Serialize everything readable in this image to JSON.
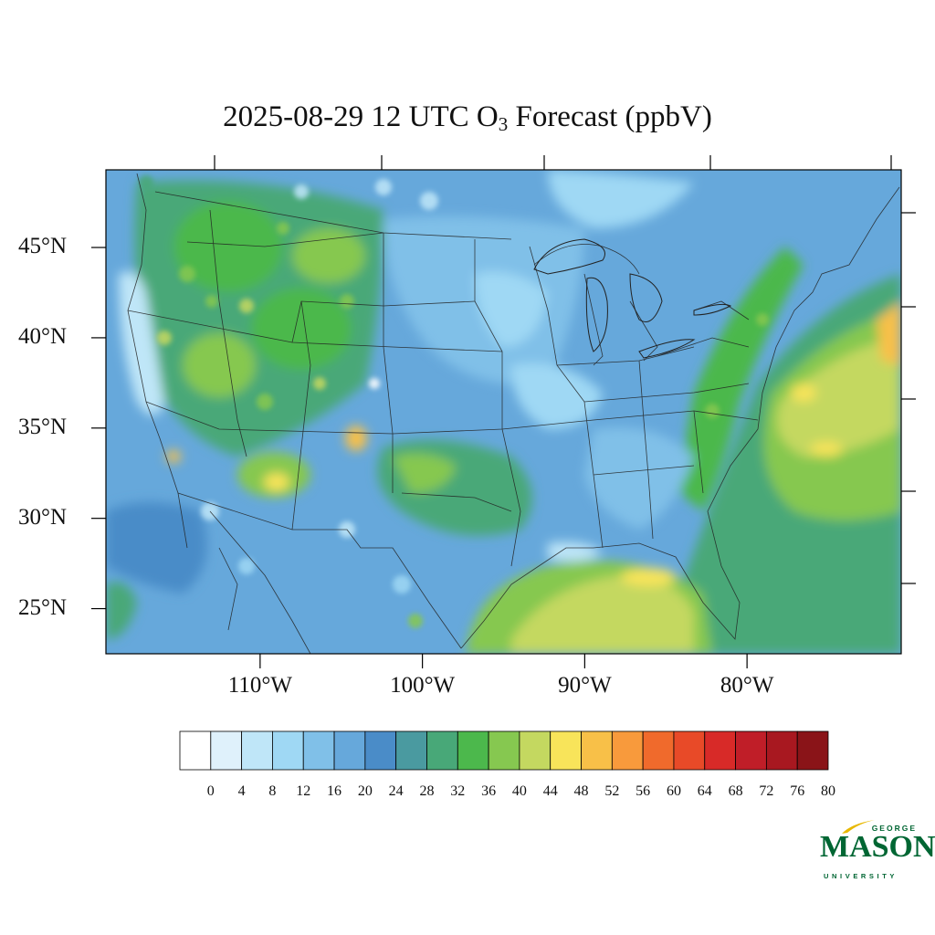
{
  "title": {
    "prefix": "2025-08-29 12 UTC O",
    "subscript": "3",
    "suffix": " Forecast (ppbV)"
  },
  "map": {
    "lat_labels": [
      "45°N",
      "40°N",
      "35°N",
      "30°N",
      "25°N"
    ],
    "lon_labels": [
      "110°W",
      "100°W",
      "90°W",
      "80°W"
    ],
    "lat_values": [
      45,
      40,
      35,
      30,
      25
    ],
    "lon_values": [
      -110,
      -100,
      -90,
      -80
    ],
    "extent": {
      "lon_min": -119.5,
      "lon_max": -70.5,
      "lat_min": 22.5,
      "lat_max": 49.3
    }
  },
  "colorbar": {
    "labels": [
      "0",
      "4",
      "8",
      "12",
      "16",
      "20",
      "24",
      "28",
      "32",
      "36",
      "40",
      "44",
      "48",
      "52",
      "56",
      "60",
      "64",
      "68",
      "72",
      "76",
      "80"
    ],
    "colors": [
      "#ffffff",
      "#dff1fb",
      "#bfe6f8",
      "#9fd8f4",
      "#80c0e8",
      "#66a8db",
      "#4a8cc8",
      "#4a9aa0",
      "#48a878",
      "#4cb84c",
      "#86c850",
      "#c4d860",
      "#f8e45a",
      "#f8c048",
      "#f89a3c",
      "#f06a2c",
      "#e84a28",
      "#d82a28",
      "#c01e28",
      "#a81820",
      "#8a1418"
    ]
  },
  "logo": {
    "top_text": "GEORGE",
    "main_text": "MASON",
    "bottom_text": "UNIVERSITY",
    "color": "#006633",
    "accent": "#e8b800"
  }
}
